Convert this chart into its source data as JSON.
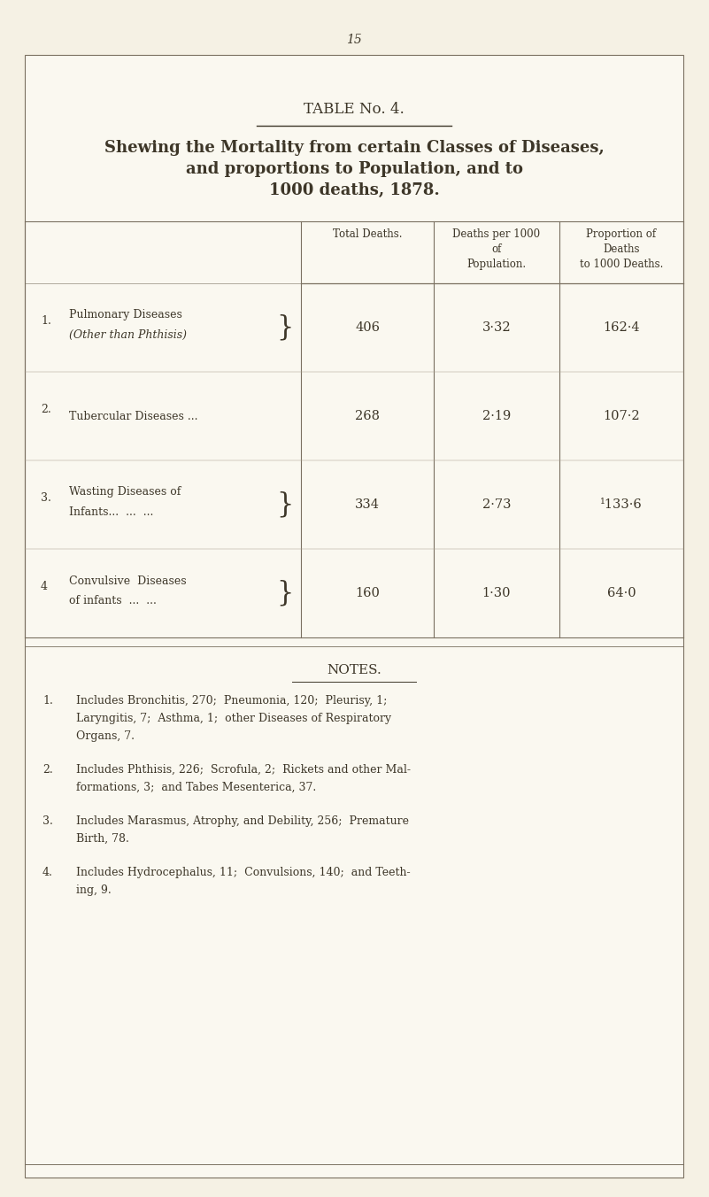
{
  "page_number": "15",
  "table_title": "TABLE No. 4.",
  "subtitle_lines": [
    "Shewing the Mortality from certain Classes of Diseases,",
    "and proportions to Population, and to",
    "1000 deaths, 1878."
  ],
  "rows": [
    {
      "num": "1.",
      "label_line1": "Pulmonary Diseases",
      "label_line2": "(Other than Phthisis)",
      "label2_italic": true,
      "brace_open": true,
      "brace_close": true,
      "total_deaths": "406",
      "per_1000_pop": "3·32",
      "prop_1000": "162·4"
    },
    {
      "num": "2.",
      "label_line1": "Tubercular Diseases ...",
      "label_line2": "",
      "label2_italic": false,
      "brace_open": false,
      "brace_close": false,
      "total_deaths": "268",
      "per_1000_pop": "2·19",
      "prop_1000": "107·2"
    },
    {
      "num": "3.",
      "label_line1": "Wasting Diseases of",
      "label_line2": "Infants...  ...  ...",
      "label2_italic": false,
      "brace_open": true,
      "brace_close": true,
      "total_deaths": "334",
      "per_1000_pop": "2·73",
      "prop_1000": "¹133·6"
    },
    {
      "num": "4",
      "label_line1": "Convulsive  Diseases",
      "label_line2": "of infants  ...  ...",
      "label2_italic": false,
      "brace_open": true,
      "brace_close": true,
      "total_deaths": "160",
      "per_1000_pop": "1·30",
      "prop_1000": "64·0"
    }
  ],
  "notes_title": "NOTES.",
  "notes": [
    [
      "1.",
      "Includes Bronchitis, 270;  Pneumonia, 120;  Pleurisy, 1;",
      "Laryngitis, 7;  Asthma, 1;  other Diseases of Respiratory",
      "Organs, 7."
    ],
    [
      "2.",
      "Includes Phthisis, 226;  Scrofula, 2;  Rickets and other Mal-",
      "formations, 3;  and Tabes Mesenterica, 37."
    ],
    [
      "3.",
      "Includes Marasmus, Atrophy, and Debility, 256;  Premature",
      "Birth, 78."
    ],
    [
      "4.",
      "Includes Hydrocephalus, 11;  Convulsions, 140;  and Teeth-",
      "ing, 9."
    ]
  ],
  "bg_color": "#f5f1e4",
  "card_color": "#faf8f0",
  "text_color": "#3d3628",
  "line_color": "#7a7060"
}
